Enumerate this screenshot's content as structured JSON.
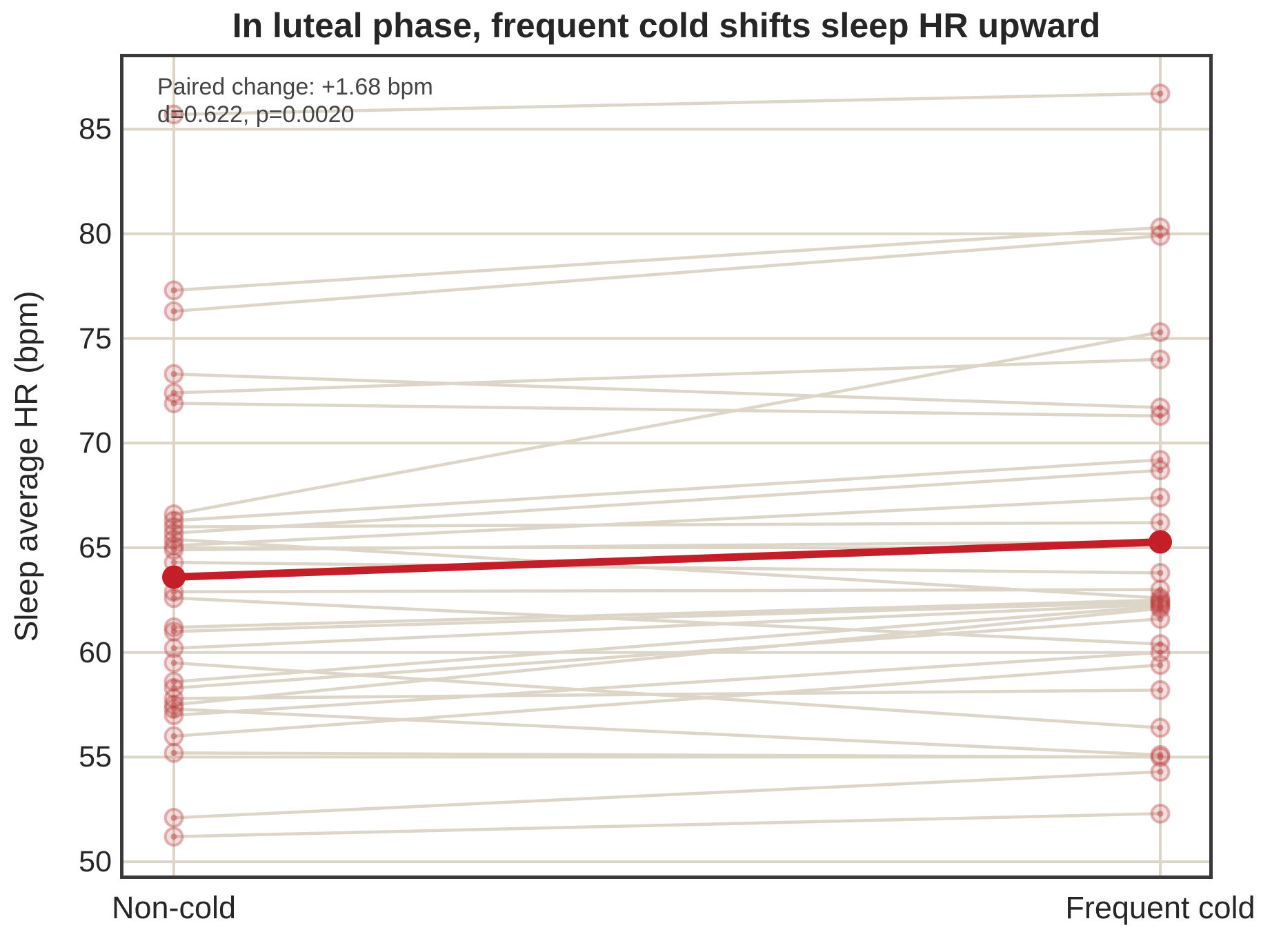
{
  "chart_data": {
    "type": "line",
    "subtype": "paired-slope",
    "title": "In luteal phase, frequent cold shifts sleep HR upward",
    "ylabel": "Sleep average HR (bpm)",
    "xlabel": "",
    "categories": [
      "Non-cold",
      "Frequent cold"
    ],
    "yticks": [
      50,
      55,
      60,
      65,
      70,
      75,
      80,
      85
    ],
    "ylim": [
      49.3,
      88.4
    ],
    "grid": "on",
    "legend": "none",
    "annotation": {
      "line1": "Paired change: +1.68 bpm",
      "line2": "d=0.622, p=0.0020"
    },
    "stats": {
      "paired_change_bpm": 1.68,
      "cohens_d": 0.622,
      "p_value": 0.002
    },
    "mean": {
      "non_cold": 63.6,
      "frequent_cold": 65.28
    },
    "pairs": [
      [
        85.7,
        86.7
      ],
      [
        77.3,
        80.3
      ],
      [
        76.3,
        79.9
      ],
      [
        73.3,
        71.7
      ],
      [
        72.4,
        74.0
      ],
      [
        71.9,
        71.3
      ],
      [
        66.6,
        75.3
      ],
      [
        66.3,
        69.2
      ],
      [
        66.0,
        66.2
      ],
      [
        65.7,
        68.7
      ],
      [
        65.4,
        62.6
      ],
      [
        65.1,
        67.4
      ],
      [
        64.9,
        65.3
      ],
      [
        64.3,
        63.8
      ],
      [
        62.9,
        63.0
      ],
      [
        62.6,
        60.4
      ],
      [
        61.2,
        62.5
      ],
      [
        61.0,
        62.4
      ],
      [
        60.2,
        62.3
      ],
      [
        59.5,
        56.4
      ],
      [
        58.6,
        62.2
      ],
      [
        58.3,
        61.6
      ],
      [
        57.8,
        58.2
      ],
      [
        57.5,
        62.1
      ],
      [
        57.3,
        55.1
      ],
      [
        57.0,
        60.0
      ],
      [
        56.0,
        59.4
      ],
      [
        55.2,
        55.0
      ],
      [
        52.1,
        54.3
      ],
      [
        51.2,
        52.3
      ]
    ],
    "colors": {
      "mean_line": "#c41f28",
      "marker_fill": "#c74444",
      "marker_edge": "#b94343",
      "pair_line": "#dcd5c8",
      "grid_line": "#dcd5c8",
      "spine": "#3a3a3a",
      "text": "#262626",
      "annotation_text": "#454545",
      "background": "#ffffff"
    }
  }
}
